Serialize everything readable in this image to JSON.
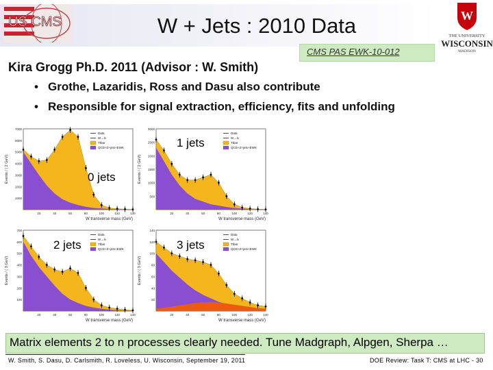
{
  "header": {
    "title": "W + Jets : 2010 Data",
    "note": "CMS PAS EWK-10-012",
    "logos": {
      "left": "US CMS",
      "right": [
        "THE UNIVERSITY",
        "WISCONSIN",
        "MADISON"
      ]
    }
  },
  "main_line": "Kira Grogg Ph.D. 2011 (Advisor : W. Smith)",
  "bullets": [
    "Grothe, Lazaridis, Ross and Dasu also contribute",
    "Responsible for signal extraction, efficiency, fits and unfolding"
  ],
  "legend": [
    "Data",
    "W→lν",
    "Ttbar",
    "QCD+Z+jets+EWK"
  ],
  "colors": {
    "signal": "#f4b61c",
    "qcd": "#8a4fd0",
    "ttbar": "#f05a0d",
    "banner": "#cdeac0"
  },
  "chart_data": [
    {
      "type": "area",
      "label": "0 jets",
      "xlabel": "W transverse mass (GeV)",
      "ylabel": "Events / ( 2 GeV)",
      "xlim": [
        0,
        140
      ],
      "ylim": [
        0,
        7000
      ],
      "yticks": [
        1000,
        2000,
        3000,
        4000,
        5000,
        6000,
        7000
      ],
      "xticks": [
        20,
        40,
        60,
        80,
        100,
        120,
        140
      ],
      "x": [
        0,
        10,
        20,
        30,
        40,
        50,
        60,
        70,
        80,
        90,
        100,
        110,
        120,
        130,
        140
      ],
      "qcd": [
        5000,
        4000,
        3000,
        2100,
        1400,
        900,
        600,
        400,
        250,
        150,
        100,
        60,
        40,
        20,
        10
      ],
      "total": [
        5200,
        4600,
        4200,
        4300,
        5200,
        6300,
        6900,
        6300,
        3600,
        1300,
        400,
        150,
        80,
        40,
        20
      ]
    },
    {
      "type": "area",
      "label": "1 jets",
      "xlabel": "W transverse mass (GeV)",
      "ylabel": "Events / ( 2 GeV)",
      "xlim": [
        0,
        140
      ],
      "ylim": [
        0,
        3000
      ],
      "yticks": [
        500,
        1000,
        1500,
        2000,
        2500,
        3000
      ],
      "xticks": [
        20,
        40,
        60,
        80,
        100,
        120,
        140
      ],
      "x": [
        0,
        10,
        20,
        30,
        40,
        50,
        60,
        70,
        80,
        90,
        100,
        110,
        120,
        130,
        140
      ],
      "qcd": [
        2300,
        1800,
        1300,
        900,
        600,
        400,
        300,
        200,
        150,
        100,
        60,
        40,
        20,
        10,
        5
      ],
      "total": [
        2600,
        2200,
        1700,
        1300,
        1100,
        1100,
        1200,
        1300,
        1000,
        500,
        200,
        80,
        40,
        20,
        10
      ]
    },
    {
      "type": "area",
      "label": "2 jets",
      "xlabel": "W transverse mass (GeV)",
      "ylabel": "Events / ( 3 GeV)",
      "xlim": [
        0,
        140
      ],
      "ylim": [
        0,
        700
      ],
      "yticks": [
        100,
        200,
        300,
        400,
        500,
        600,
        700
      ],
      "xticks": [
        20,
        40,
        60,
        80,
        100,
        120,
        140
      ],
      "x": [
        0,
        10,
        20,
        30,
        40,
        50,
        60,
        70,
        80,
        90,
        100,
        110,
        120,
        130,
        140
      ],
      "qcd": [
        600,
        480,
        380,
        300,
        220,
        150,
        100,
        70,
        45,
        30,
        20,
        12,
        8,
        5,
        3
      ],
      "total": [
        650,
        560,
        470,
        400,
        360,
        340,
        370,
        330,
        200,
        100,
        50,
        30,
        20,
        12,
        6
      ]
    },
    {
      "type": "area",
      "label": "3 jets",
      "xlabel": "W transverse mass (GeV)",
      "ylabel": "Events / ( 3 GeV)",
      "xlim": [
        0,
        140
      ],
      "ylim": [
        0,
        140
      ],
      "yticks": [
        20,
        40,
        60,
        80,
        100,
        120,
        140
      ],
      "xticks": [
        20,
        40,
        60,
        80,
        100,
        120,
        140
      ],
      "x": [
        0,
        10,
        20,
        30,
        40,
        50,
        60,
        70,
        80,
        90,
        100,
        110,
        120,
        130,
        140
      ],
      "qcd": [
        100,
        85,
        70,
        58,
        46,
        36,
        28,
        22,
        16,
        12,
        9,
        6,
        4,
        3,
        2
      ],
      "ttbar": [
        4,
        6,
        8,
        10,
        12,
        14,
        15,
        16,
        15,
        13,
        11,
        9,
        7,
        5,
        4
      ],
      "total": [
        120,
        110,
        100,
        95,
        90,
        88,
        85,
        80,
        65,
        45,
        30,
        22,
        15,
        10,
        8
      ]
    }
  ],
  "banner": "Matrix elements 2 to n processes clearly needed. Tune Madgraph, Alpgen, Sherpa …",
  "footer": {
    "left": "W. Smith, S. Dasu, D. Carlsmith, R. Loveless, U. Wisconsin, September 19, 2011",
    "right": "DOE Review: Task T: CMS at LHC - 30"
  }
}
